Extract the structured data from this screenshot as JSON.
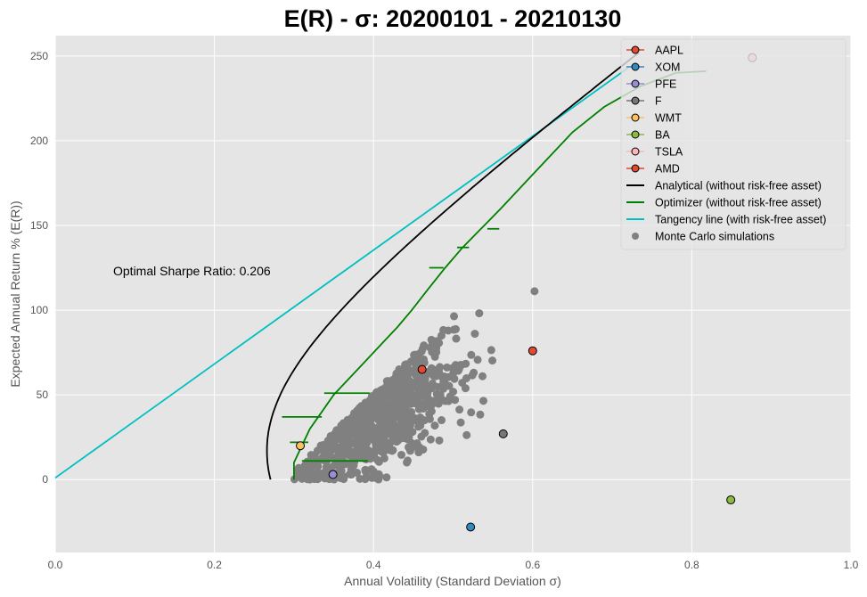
{
  "chart_data": {
    "type": "scatter",
    "title": "E(R) - σ: 20200101 - 20210130",
    "xlabel": "Annual Volatility (Standard Deviation σ)",
    "ylabel": "Expected Annual Return % (E(R))",
    "xlim": [
      0.0,
      1.0
    ],
    "ylim": [
      -43,
      262
    ],
    "xticks": [
      "0.0",
      "0.2",
      "0.4",
      "0.6",
      "0.8",
      "1.0"
    ],
    "xtick_values": [
      0.0,
      0.2,
      0.4,
      0.6,
      0.8,
      1.0
    ],
    "yticks": [
      "0",
      "50",
      "100",
      "150",
      "200",
      "250"
    ],
    "ytick_values": [
      0,
      50,
      100,
      150,
      200,
      250
    ],
    "grid": true,
    "legend_position": "top-right",
    "annotation": "Optimal Sharpe Ratio: 0.206",
    "background_color": "#e5e5e5",
    "assets": [
      {
        "name": "AAPL",
        "x": 0.461,
        "y": 65,
        "color": "#e24a33"
      },
      {
        "name": "XOM",
        "x": 0.522,
        "y": -28,
        "color": "#348abd"
      },
      {
        "name": "PFE",
        "x": 0.349,
        "y": 3,
        "color": "#988ed5"
      },
      {
        "name": "F",
        "x": 0.563,
        "y": 27,
        "color": "#777777"
      },
      {
        "name": "WMT",
        "x": 0.308,
        "y": 20,
        "color": "#fbc15e"
      },
      {
        "name": "BA",
        "x": 0.849,
        "y": -12,
        "color": "#8eba42"
      },
      {
        "name": "TSLA",
        "x": 0.876,
        "y": 249,
        "color": "#ffb5b8"
      },
      {
        "name": "AMD",
        "x": 0.6,
        "y": 76,
        "color": "#e24a33"
      }
    ],
    "lines": [
      {
        "name": "Analytical (without risk-free asset)",
        "color": "#000000"
      },
      {
        "name": "Optimizer (without risk-free asset)",
        "color": "#008000"
      },
      {
        "name": "Tangency line (with risk-free asset)",
        "color": "#00bfbf"
      }
    ],
    "monte_carlo": {
      "name": "Monte Carlo simulations",
      "color": "#808080"
    },
    "analytical_curve": {
      "vertex_sigma": 0.266,
      "vertex_return": 17,
      "sigma_at_250": 0.728
    },
    "tangency_line": {
      "x": [
        0.0,
        0.72
      ],
      "y": [
        1,
        243
      ]
    },
    "optimizer_curve": [
      [
        0.3,
        0
      ],
      [
        0.3,
        10
      ],
      [
        0.31,
        20
      ],
      [
        0.32,
        30
      ],
      [
        0.335,
        40
      ],
      [
        0.35,
        50
      ],
      [
        0.37,
        60
      ],
      [
        0.39,
        70
      ],
      [
        0.41,
        80
      ],
      [
        0.43,
        90
      ],
      [
        0.448,
        100
      ],
      [
        0.468,
        112
      ],
      [
        0.49,
        125
      ],
      [
        0.512,
        137
      ],
      [
        0.535,
        148
      ],
      [
        0.56,
        160
      ],
      [
        0.59,
        175
      ],
      [
        0.62,
        190
      ],
      [
        0.65,
        205
      ],
      [
        0.69,
        220
      ],
      [
        0.735,
        232
      ],
      [
        0.78,
        240
      ],
      [
        0.818,
        241
      ]
    ],
    "optimizer_spurs": [
      {
        "x0": 0.31,
        "x1": 0.393,
        "y": 11
      },
      {
        "x0": 0.295,
        "x1": 0.318,
        "y": 22
      },
      {
        "x0": 0.285,
        "x1": 0.335,
        "y": 37
      },
      {
        "x0": 0.338,
        "x1": 0.395,
        "y": 51
      },
      {
        "x0": 0.47,
        "x1": 0.488,
        "y": 125
      },
      {
        "x0": 0.505,
        "x1": 0.52,
        "y": 137
      },
      {
        "x0": 0.543,
        "x1": 0.558,
        "y": 148
      }
    ]
  }
}
